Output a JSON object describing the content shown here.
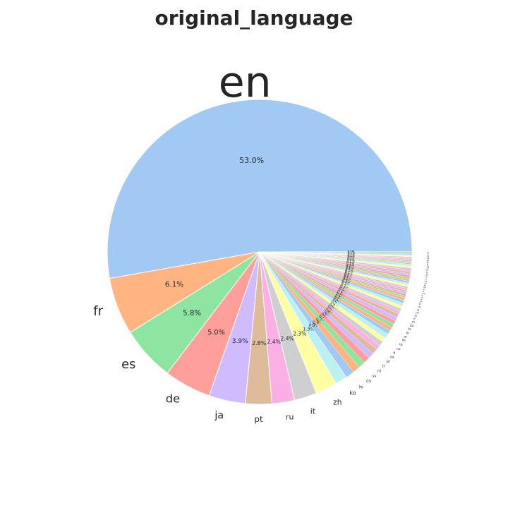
{
  "chart_data": {
    "type": "pie",
    "title": "original_language",
    "categories": [
      "en",
      "fr",
      "es",
      "de",
      "ja",
      "pt",
      "ru",
      "it",
      "zh",
      "ko",
      "hi",
      "cn",
      "sv",
      "nl",
      "tr",
      "pl",
      "da",
      "fi",
      "no",
      "ta",
      "he",
      "ar",
      "th",
      "fa",
      "hu",
      "cs",
      "el",
      "te",
      "ml",
      "id",
      "ro",
      "tl",
      "bn",
      "ur",
      "uk",
      "is",
      "ms",
      "sr",
      "xx",
      "ka",
      "kn",
      "mr",
      "bs",
      "vi",
      "lv",
      "et",
      "hr",
      "sl",
      "sk",
      "bg",
      "ps",
      "ky",
      "eu",
      "gl",
      "ga",
      "cy",
      "mk",
      "sq",
      "hy",
      "mn",
      "lt",
      "af",
      "zu"
    ],
    "values": [
      53.0,
      6.1,
      5.8,
      5.0,
      3.9,
      2.8,
      2.4,
      2.4,
      2.3,
      1.3,
      0.9,
      0.8,
      0.7,
      0.7,
      0.6,
      0.6,
      0.5,
      0.5,
      0.5,
      0.5,
      0.4,
      0.4,
      0.4,
      0.4,
      0.4,
      0.4,
      0.3,
      0.3,
      0.3,
      0.3,
      0.3,
      0.3,
      0.2,
      0.2,
      0.2,
      0.2,
      0.2,
      0.2,
      0.2,
      0.2,
      0.2,
      0.2,
      0.2,
      0.2,
      0.2,
      0.2,
      0.2,
      0.2,
      0.2,
      0.2,
      0.1,
      0.1,
      0.1,
      0.1,
      0.1,
      0.1,
      0.1,
      0.1,
      0.1,
      0.1,
      0.1,
      0.1,
      0.1
    ],
    "value_labels": [
      "53.0%",
      "6.1%",
      "5.8%",
      "5.0%",
      "3.9%",
      "2.8%",
      "2.4%",
      "2.4%",
      "2.3%",
      "1.3%",
      "0.9%",
      "0.8%",
      "0.7%",
      "0.7%",
      "0.6%",
      "0.6%",
      "0.5%",
      "0.5%",
      "0.5%",
      "0.5%",
      "0.4%",
      "0.4%",
      "0.4%",
      "0.4%",
      "0.4%",
      "0.4%",
      "0.3%",
      "0.3%",
      "0.3%",
      "0.3%",
      "0.3%",
      "0.3%",
      "0.2%",
      "0.2%",
      "0.2%",
      "0.2%",
      "0.2%",
      "0.2%",
      "0.2%",
      "0.2%",
      "0.2%",
      "0.2%",
      "0.2%",
      "0.2%",
      "0.2%",
      "0.2%",
      "0.2%",
      "0.2%",
      "0.2%",
      "0.2%",
      "0.1%",
      "0.1%",
      "0.1%",
      "0.1%",
      "0.1%",
      "0.1%",
      "0.1%",
      "0.1%",
      "0.1%",
      "0.1%",
      "0.1%",
      "0.1%",
      "0.1%"
    ],
    "colors": [
      "#a1c9f4",
      "#ffb482",
      "#8de5a1",
      "#ff9f9b",
      "#d0bbff",
      "#debb9b",
      "#fab0e4",
      "#cfcfcf",
      "#fffea3",
      "#b9f2f0"
    ]
  }
}
